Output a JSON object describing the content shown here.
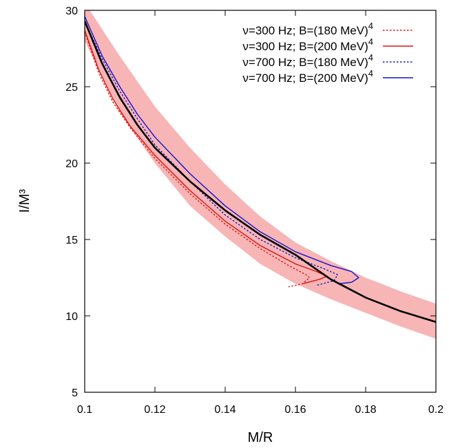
{
  "chart_data": {
    "type": "line",
    "xlabel": "M/R",
    "ylabel": "I/M³",
    "xlim": [
      0.1,
      0.2
    ],
    "ylim": [
      5,
      30
    ],
    "xticks": [
      "0.1",
      "0.12",
      "0.14",
      "0.16",
      "0.18",
      "0.2"
    ],
    "yticks": [
      "5",
      "10",
      "15",
      "20",
      "25",
      "30"
    ],
    "grid": false,
    "legend_position": "top-right",
    "band": {
      "color": "#f7b5b5",
      "x": [
        0.1,
        0.11,
        0.12,
        0.13,
        0.14,
        0.15,
        0.16,
        0.17,
        0.18,
        0.19,
        0.2
      ],
      "upper": [
        30.5,
        27.0,
        23.7,
        21.0,
        18.6,
        16.5,
        14.8,
        13.6,
        12.5,
        11.6,
        10.8
      ],
      "lower": [
        28.0,
        23.3,
        20.0,
        17.2,
        15.2,
        13.4,
        12.1,
        11.1,
        10.2,
        9.3,
        8.5
      ]
    },
    "fit_line": {
      "color": "#000000",
      "x": [
        0.1,
        0.105,
        0.11,
        0.115,
        0.12,
        0.13,
        0.14,
        0.15,
        0.16,
        0.17,
        0.18,
        0.19,
        0.2
      ],
      "y": [
        29.3,
        26.5,
        24.3,
        22.5,
        21.0,
        18.8,
        16.9,
        15.3,
        14.0,
        12.4,
        11.2,
        10.3,
        9.6
      ]
    },
    "series": [
      {
        "name": "ν=300 Hz; B=(180 MeV)",
        "superscript": "4",
        "color": "#e01010",
        "dash": "dotted",
        "x": [
          0.1,
          0.104,
          0.108,
          0.113,
          0.12,
          0.13,
          0.14,
          0.15,
          0.158,
          0.163,
          0.164,
          0.162,
          0.158
        ],
        "y": [
          28.6,
          25.9,
          24.0,
          22.3,
          20.3,
          18.0,
          16.0,
          14.4,
          13.3,
          12.7,
          12.5,
          12.1,
          11.9
        ]
      },
      {
        "name": "ν=300 Hz; B=(200 MeV)",
        "superscript": "4",
        "color": "#e01010",
        "dash": "solid",
        "x": [
          0.1,
          0.104,
          0.108,
          0.113,
          0.12,
          0.13,
          0.14,
          0.15,
          0.16,
          0.166,
          0.169,
          0.167,
          0.162
        ],
        "y": [
          28.7,
          26.1,
          24.2,
          22.4,
          20.5,
          18.2,
          16.2,
          14.6,
          13.4,
          12.9,
          12.6,
          12.4,
          12.1
        ]
      },
      {
        "name": "ν=700 Hz; B=(180 MeV)",
        "superscript": "4",
        "color": "#1010d0",
        "dash": "dotted",
        "x": [
          0.1,
          0.105,
          0.11,
          0.115,
          0.12,
          0.13,
          0.14,
          0.15,
          0.16,
          0.168,
          0.172,
          0.171,
          0.166
        ],
        "y": [
          29.3,
          26.8,
          24.7,
          22.9,
          21.2,
          18.8,
          16.6,
          15.0,
          13.8,
          13.1,
          12.7,
          12.3,
          12.0
        ]
      },
      {
        "name": "ν=700 Hz; B=(200 MeV)",
        "superscript": "4",
        "color": "#1010d0",
        "dash": "solid",
        "x": [
          0.1,
          0.105,
          0.11,
          0.115,
          0.12,
          0.13,
          0.14,
          0.15,
          0.16,
          0.17,
          0.176,
          0.178,
          0.176,
          0.172
        ],
        "y": [
          29.6,
          27.0,
          25.0,
          23.2,
          21.7,
          19.3,
          17.2,
          15.5,
          14.2,
          13.3,
          12.9,
          12.5,
          12.2,
          12.1
        ]
      }
    ]
  }
}
